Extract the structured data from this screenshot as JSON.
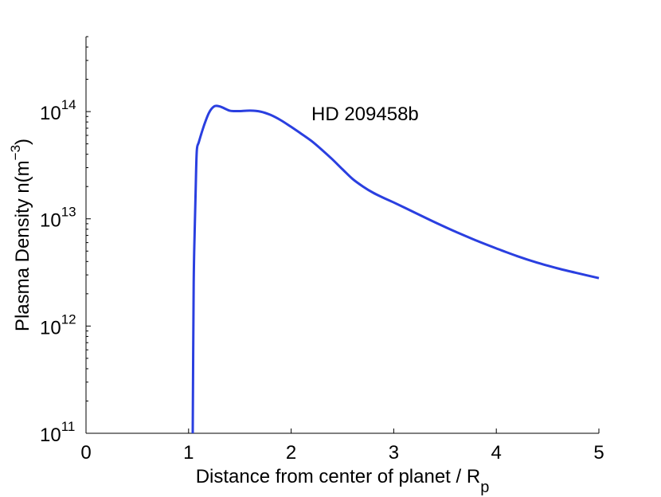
{
  "chart_data": {
    "type": "line",
    "title": "",
    "annotation": "HD 209458b",
    "xlabel": {
      "text": "Distance from center of planet / R",
      "subscript": "p"
    },
    "ylabel": {
      "text": "Plasma Density n(m",
      "superscript": "−3",
      "suffix": ")"
    },
    "xlim": [
      0,
      5
    ],
    "ylim": [
      100000000000.0,
      500000000000000.0
    ],
    "yscale": "log",
    "grid": false,
    "legend": "none",
    "xticks": [
      {
        "value": 0,
        "label": "0"
      },
      {
        "value": 1,
        "label": "1"
      },
      {
        "value": 2,
        "label": "2"
      },
      {
        "value": 3,
        "label": "3"
      },
      {
        "value": 4,
        "label": "4"
      },
      {
        "value": 5,
        "label": "5"
      }
    ],
    "yticks": [
      {
        "value": 100000000000.0,
        "base": "10",
        "exp": "11"
      },
      {
        "value": 1000000000000.0,
        "base": "10",
        "exp": "12"
      },
      {
        "value": 10000000000000.0,
        "base": "10",
        "exp": "13"
      },
      {
        "value": 100000000000000.0,
        "base": "10",
        "exp": "14"
      }
    ],
    "series": [
      {
        "color": "#2a3fe0",
        "x": [
          1.04,
          1.05,
          1.06,
          1.07,
          1.08,
          1.1,
          1.15,
          1.2,
          1.25,
          1.3,
          1.35,
          1.4,
          1.45,
          1.5,
          1.6,
          1.7,
          1.8,
          1.9,
          2.0,
          2.1,
          2.2,
          2.3,
          2.4,
          2.5,
          2.6,
          2.7,
          2.8,
          2.9,
          3.0,
          3.2,
          3.4,
          3.6,
          3.8,
          4.0,
          4.2,
          4.4,
          4.6,
          4.8,
          5.0
        ],
        "y": [
          100000000000.0,
          2500000000000.0,
          8000000000000.0,
          20000000000000.0,
          43000000000000.0,
          52000000000000.0,
          74000000000000.0,
          98000000000000.0,
          112000000000000.0,
          112000000000000.0,
          107000000000000.0,
          102000000000000.0,
          101000000000000.0,
          101000000000000.0,
          102000000000000.0,
          100000000000000.0,
          93000000000000.0,
          83000000000000.0,
          72000000000000.0,
          62000000000000.0,
          53000000000000.0,
          44000000000000.0,
          36000000000000.0,
          29000000000000.0,
          23500000000000.0,
          20000000000000.0,
          17500000000000.0,
          15700000000000.0,
          14200000000000.0,
          11500000000000.0,
          9300000000000.0,
          7600000000000.0,
          6300000000000.0,
          5300000000000.0,
          4500000000000.0,
          3900000000000.0,
          3450000000000.0,
          3100000000000.0,
          2800000000000.0
        ]
      }
    ]
  }
}
